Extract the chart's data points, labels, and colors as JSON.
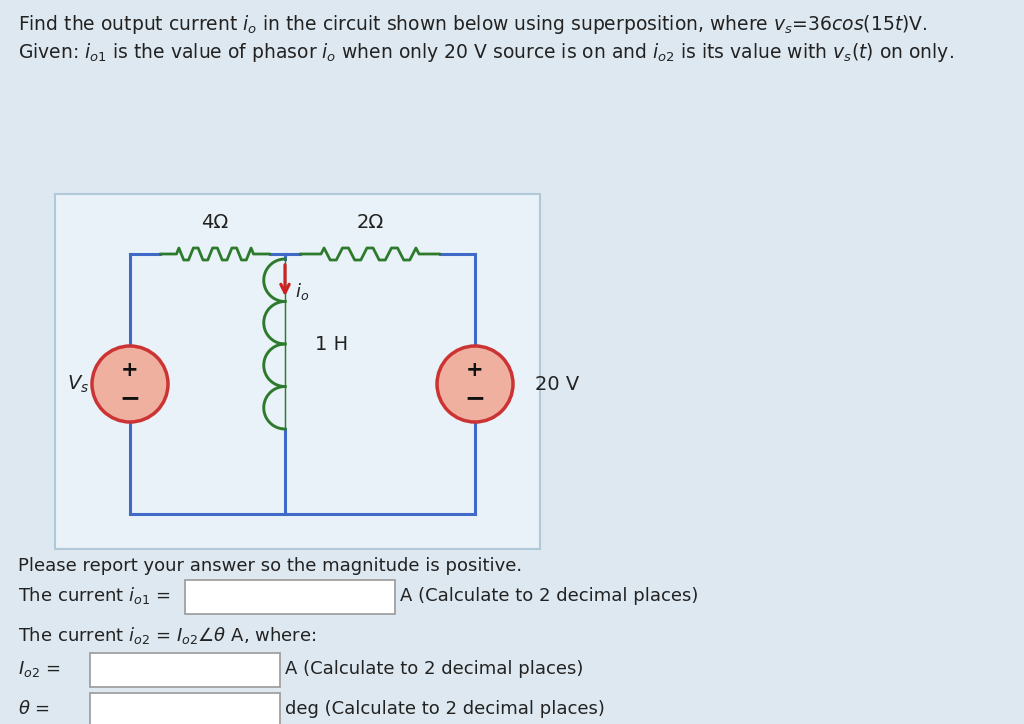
{
  "bg_color": "#dde8f0",
  "circuit_box_bg": "#e8f2f8",
  "wire_color": "#4169c8",
  "resistor_color": "#2d7a2d",
  "inductor_color": "#2d7a2d",
  "source_fill": "#f0b0a0",
  "source_stroke": "#cc3333",
  "arrow_color": "#cc2222",
  "text_color": "#222222",
  "input_box_color": "#ffffff",
  "input_box_border": "#999999",
  "title1": "Find the output current $i_o$ in the circuit shown below using superposition, where $v_s$=36$cos$(15$t$)V.",
  "title2": "Given: $i_{o1}$ is the value of phasor $i_o$ when only 20 V source is on and $i_{o2}$ is its value with $v_s(t)$ on only.",
  "please_text": "Please report your answer so the magnitude is positive.",
  "row1_label": "The current $i_{o1}$ =",
  "row1_suffix": "A (Calculate to 2 decimal places)",
  "row2_label": "The current $i_{o2}$ = $I_{o2}\\angle\\theta$ A, where:",
  "row3_label": "$I_{o2}$ =",
  "row3_suffix": "A (Calculate to 2 decimal places)",
  "row4_label": "$\\theta$ =",
  "row4_suffix": "deg (Calculate to 2 decimal places)",
  "res4_label": "4Ω",
  "res2_label": "2Ω",
  "ind_label": "1 H",
  "vs_label": "$V_s$",
  "v20_label": "20 V",
  "io_label": "$i_o$"
}
